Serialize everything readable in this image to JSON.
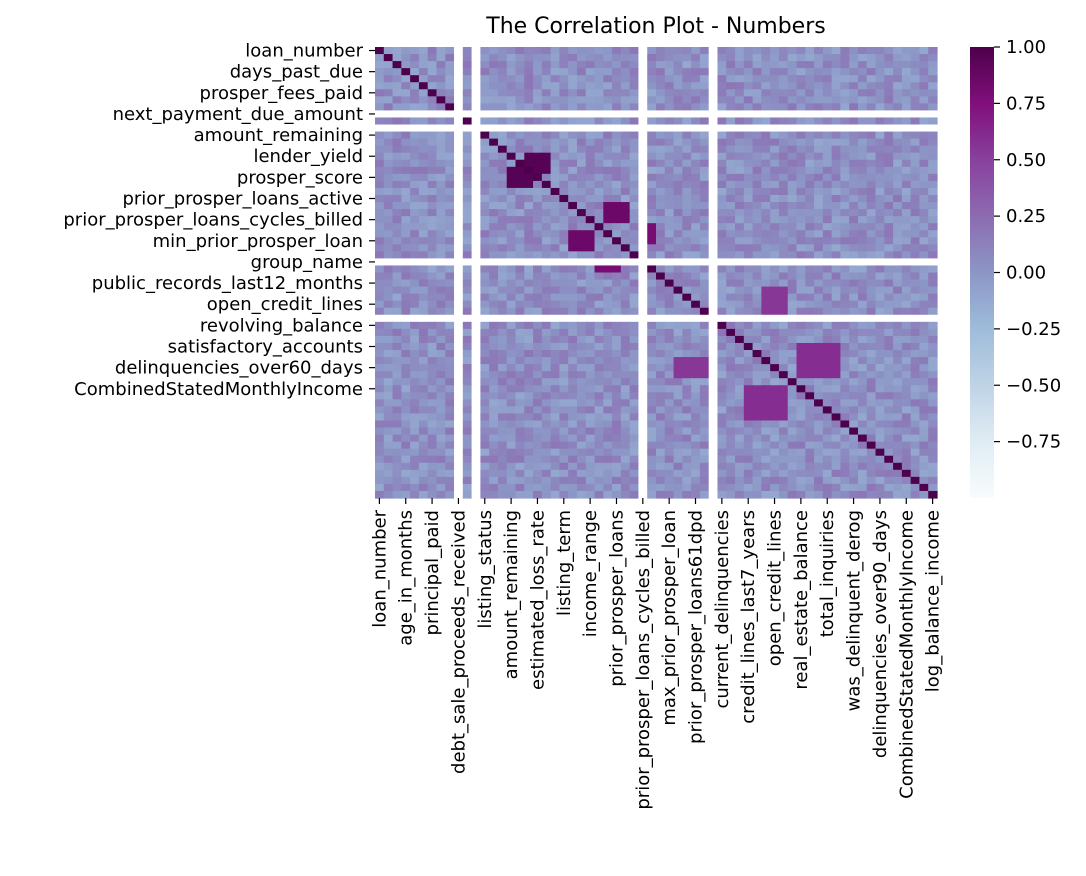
{
  "chart_data": {
    "type": "heatmap",
    "title": "The Correlation Plot - Numbers",
    "xlabel": "",
    "ylabel": "",
    "n": 64,
    "value_range": [
      -1.0,
      1.0
    ],
    "colormap": "BuPu",
    "colorscale_colors": [
      "#f7fcfd",
      "#e0ecf4",
      "#bfd3e6",
      "#9ebcda",
      "#8c96c6",
      "#8c6bb1",
      "#88419d",
      "#810f7c",
      "#4d004b"
    ],
    "missing_color": "#ffffff",
    "y_tick_labels": [
      {
        "row": 0,
        "label": "loan_number"
      },
      {
        "row": 3,
        "label": "days_past_due"
      },
      {
        "row": 6,
        "label": "prosper_fees_paid"
      },
      {
        "row": 9,
        "label": "next_payment_due_amount"
      },
      {
        "row": 12,
        "label": "amount_remaining"
      },
      {
        "row": 15,
        "label": "lender_yield"
      },
      {
        "row": 18,
        "label": "prosper_score"
      },
      {
        "row": 21,
        "label": "prior_prosper_loans_active"
      },
      {
        "row": 24,
        "label": "prior_prosper_loans_cycles_billed"
      },
      {
        "row": 27,
        "label": "min_prior_prosper_loan"
      },
      {
        "row": 30,
        "label": "group_name"
      },
      {
        "row": 33,
        "label": "public_records_last12_months"
      },
      {
        "row": 36,
        "label": "open_credit_lines"
      },
      {
        "row": 39,
        "label": "revolving_balance"
      },
      {
        "row": 42,
        "label": "satisfactory_accounts"
      },
      {
        "row": 45,
        "label": "delinquencies_over60_days"
      },
      {
        "row": 48,
        "label": "CombinedStatedMonthlyIncome"
      }
    ],
    "x_tick_labels": [
      {
        "col": 0,
        "label": "loan_number"
      },
      {
        "col": 3,
        "label": "age_in_months"
      },
      {
        "col": 6,
        "label": "principal_paid"
      },
      {
        "col": 9,
        "label": "debt_sale_proceeds_received"
      },
      {
        "col": 12,
        "label": "listing_status"
      },
      {
        "col": 15,
        "label": "amount_remaining"
      },
      {
        "col": 18,
        "label": "estimated_loss_rate"
      },
      {
        "col": 21,
        "label": "listing_term"
      },
      {
        "col": 24,
        "label": "income_range"
      },
      {
        "col": 27,
        "label": "prior_prosper_loans"
      },
      {
        "col": 30,
        "label": "prior_prosper_loans_cycles_billed"
      },
      {
        "col": 33,
        "label": "max_prior_prosper_loan"
      },
      {
        "col": 36,
        "label": "prior_prosper_loans61dpd"
      },
      {
        "col": 39,
        "label": "current_delinquencies"
      },
      {
        "col": 42,
        "label": "credit_lines_last7_years"
      },
      {
        "col": 45,
        "label": "open_credit_lines"
      },
      {
        "col": 48,
        "label": "real_estate_balance"
      },
      {
        "col": 51,
        "label": "total_inquiries"
      },
      {
        "col": 54,
        "label": "was_delinquent_derog"
      },
      {
        "col": 57,
        "label": "delinquencies_over90_days"
      },
      {
        "col": 60,
        "label": "CombinedStatedMonthlyIncome"
      },
      {
        "col": 63,
        "label": "log_balance_income"
      }
    ],
    "missing_rows_cols": [
      9,
      11,
      30,
      38
    ],
    "blocks": [
      {
        "rows": [
          15,
          17
        ],
        "cols": [
          17,
          19
        ],
        "value": 0.95
      },
      {
        "rows": [
          22,
          24
        ],
        "cols": [
          26,
          28
        ],
        "value": 0.85
      },
      {
        "rows": [
          25,
          27
        ],
        "cols": [
          30,
          31
        ],
        "value": 0.8
      },
      {
        "rows": [
          42,
          46
        ],
        "cols": [
          48,
          52
        ],
        "value": 0.6
      },
      {
        "rows": [
          34,
          38
        ],
        "cols": [
          44,
          46
        ],
        "value": 0.55
      }
    ],
    "colorbar": {
      "ticks": [
        1.0,
        0.75,
        0.5,
        0.25,
        0.0,
        -0.25,
        -0.5,
        -0.75
      ],
      "tick_labels": [
        "1.00",
        "0.75",
        "0.50",
        "0.25",
        "0.00",
        "−0.25",
        "−0.50",
        "−0.75"
      ]
    },
    "grid": false,
    "legend": "colorbar-right"
  }
}
